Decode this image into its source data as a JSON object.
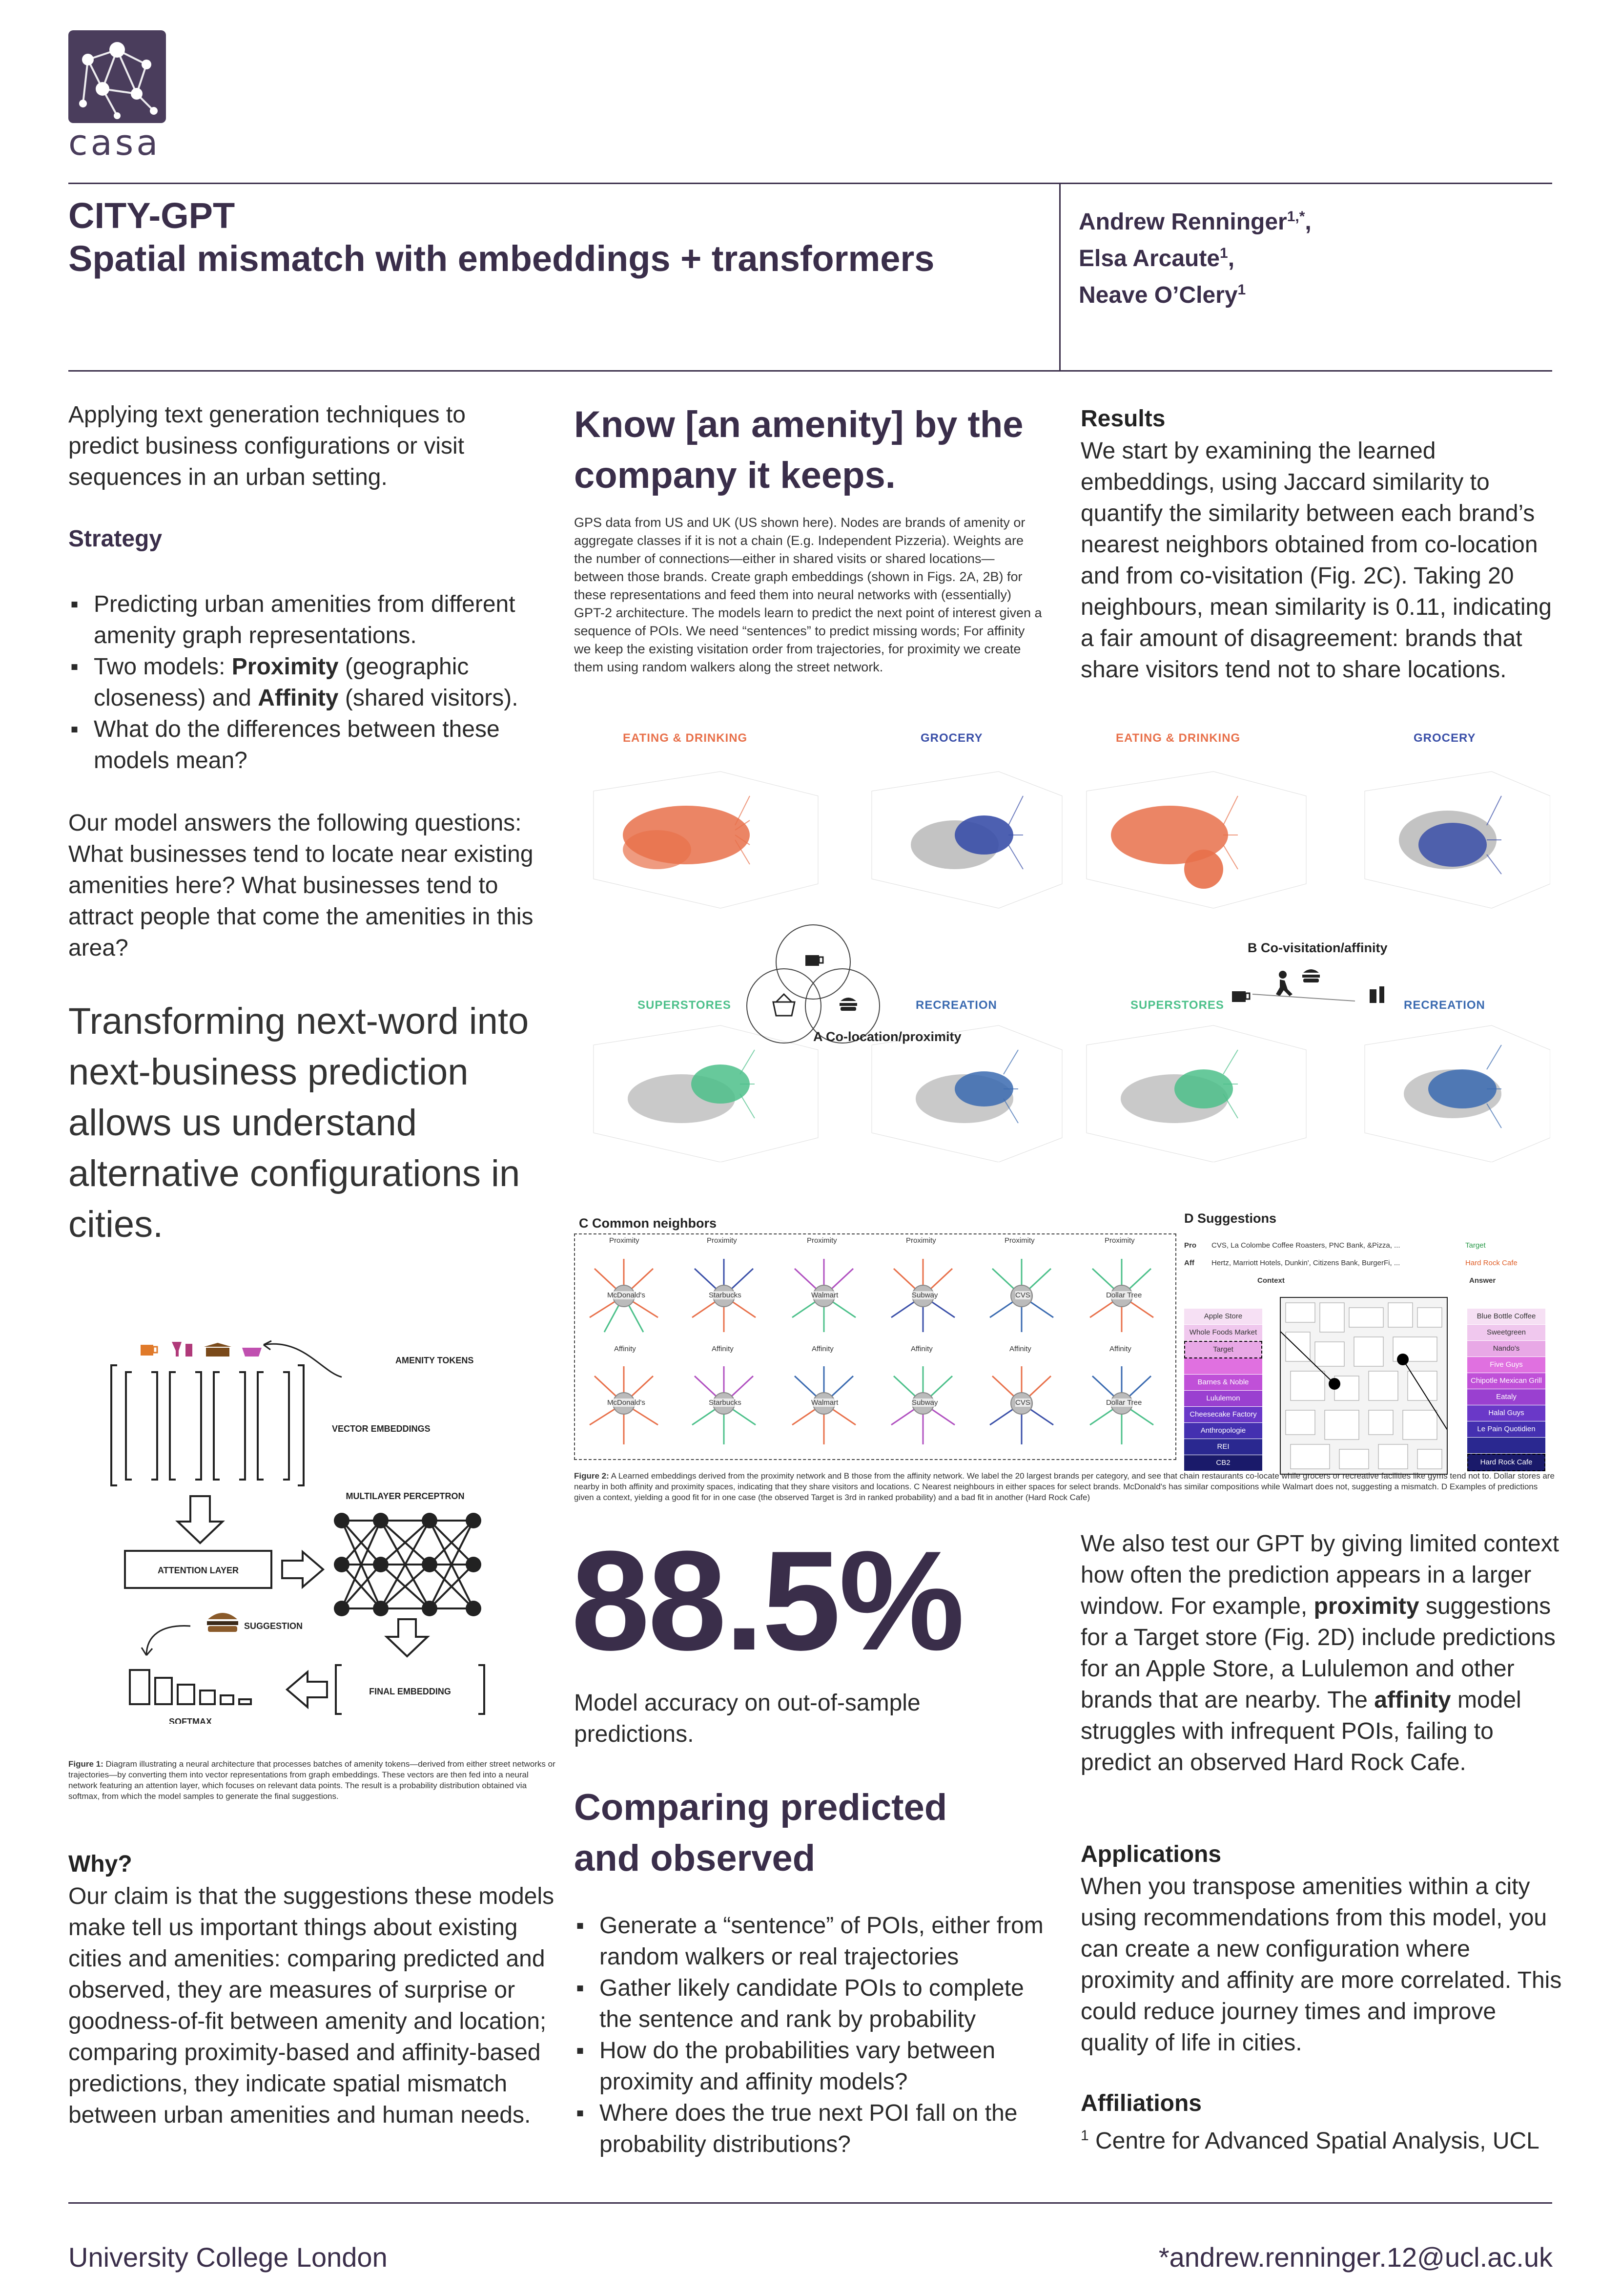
{
  "logo": {
    "text": "casa"
  },
  "title": {
    "line1": "CITY-GPT",
    "line2": "Spatial mismatch with embeddings + transformers"
  },
  "authors": [
    {
      "name": "Andrew Renninger",
      "sup": "1,*",
      "sep": ","
    },
    {
      "name": "Elsa Arcaute",
      "sup": "1",
      "sep": ","
    },
    {
      "name": "Neave O’Clery",
      "sup": "1",
      "sep": ""
    }
  ],
  "left": {
    "intro": "Applying text generation techniques to predict business configurations or visit sequences in an urban setting.",
    "strategy_heading": "Strategy",
    "strategy_items": [
      {
        "pre": "Predicting urban amenities from different amenity graph representations.",
        "b1": "",
        "mid": "",
        "b2": "",
        "post": ""
      },
      {
        "pre": "Two models: ",
        "b1": "Proximity",
        "mid": " (geographic closeness) and ",
        "b2": "Affinity",
        "post": " (shared visitors)."
      },
      {
        "pre": "What do the differences between these models mean?",
        "b1": "",
        "mid": "",
        "b2": "",
        "post": ""
      }
    ],
    "questions": "Our model answers the following questions: What businesses tend to locate near existing amenities here? What businesses tend to attract people that come the amenities in this area?",
    "big_statement": "Transforming next-word into next-business prediction allows us understand alternative configurations in cities.",
    "fig1_labels": {
      "amenity_tokens": "AMENITY TOKENS",
      "vector_embeddings": "VECTOR EMBEDDINGS",
      "mlp": "MULTILAYER PERCEPTRON",
      "attention": "ATTENTION LAYER",
      "suggestion": "SUGGESTION",
      "final_embedding": "FINAL EMBEDDING",
      "softmax": "SOFTMAX"
    },
    "fig1_caption_bold": "Figure 1:",
    "fig1_caption": " Diagram illustrating a neural architecture that processes batches of amenity tokens—derived from either street networks or trajectories—by converting them into vector representations from graph embeddings. These vectors are then fed into a neural network featuring an attention layer, which focuses on relevant data points. The result is a probability distribution obtained via softmax, from which the model samples to generate the final suggestions.",
    "why_heading": "Why?",
    "why_text": "Our claim is that the suggestions these models make tell us important things about existing cities and amenities: comparing predicted and observed, they are measures of surprise or goodness-of-fit between amenity and location; comparing proximity-based and affinity-based predictions, they indicate spatial mismatch between urban amenities and human needs."
  },
  "middle": {
    "heading": "Know [an amenity] by the company it keeps.",
    "gps_text": "GPS data from US and UK (US shown here). Nodes are brands of amenity or aggregate classes if it is not a chain (E.g. Independent Pizzeria). Weights are the number of connections—either in shared visits or shared locations—between those brands. Create graph embeddings (shown in Figs. 2A, 2B) for these representations and feed them into neural networks with (essentially) GPT-2 architecture. The models learn to predict the next point of interest given a sequence of POIs. We need “sentences” to predict missing words; For affinity we keep the existing visitation order from trajectories, for proximity we create them using random walkers along the street network.",
    "big_number": "88.5%",
    "accuracy_text": "Model accuracy on out-of-sample predictions.",
    "compare_heading": "Comparing predicted and observed",
    "compare_items": [
      "Generate a “sentence” of POIs, either from random walkers or real trajectories",
      "Gather likely candidate POIs to complete the sentence and rank by probability",
      "How do the probabilities vary between proximity and affinity models?",
      "Where does the true next POI fall on the probability distributions?"
    ]
  },
  "right": {
    "results_heading": "Results",
    "results_text": "We start by examining the learned embeddings, using Jaccard similarity to quantify the similarity between each brand’s nearest neighbors obtained from co-location and from co-visitation (Fig. 2C). Taking 20 neighbours, mean similarity is 0.11, indicating a fair amount of disagreement: brands that share visitors tend not to share locations.",
    "test_pre": "We also test our GPT by giving limited context how often the prediction appears in a larger window. For example, ",
    "test_b1": "proximity",
    "test_mid": " suggestions for a Target store (Fig. 2D) include predictions for an Apple Store, a Lululemon and other brands that are nearby. The ",
    "test_b2": "affinity",
    "test_post": " model struggles with infrequent POIs, failing to predict an observed Hard Rock Cafe.",
    "applications_heading": "Applications",
    "applications_text": "When you transpose amenities within a city using recommendations from this model, you can create a new configuration where proximity and affinity are more correlated. This could reduce journey times and improve quality of life in cities.",
    "affiliations_heading": "Affiliations",
    "affiliations_sup": "1",
    "affiliations_text": " Centre for Advanced Spatial Analysis, UCL"
  },
  "figure2": {
    "cat_labels": {
      "eating": "EATING & DRINKING",
      "grocery": "GROCERY",
      "superstores": "SUPERSTORES",
      "recreation": "RECREATION"
    },
    "panel_a": "A Co-location/proximity",
    "panel_b": "B Co-visitation/affinity",
    "panel_c": "C Common neighbors",
    "panel_d": "D Suggestions",
    "proximity_label": "Proximity",
    "affinity_label": "Affinity",
    "brands": [
      "McDonald's",
      "Starbucks",
      "Walmart",
      "Subway",
      "CVS",
      "Dollar Tree"
    ],
    "pro_label": "Pro",
    "aff_label": "Aff",
    "pro_context": "CVS, La Colombe Coffee Roasters, PNC Bank, &Pizza, ...",
    "aff_context": "Hertz, Marriott Hotels, Dunkin', Citizens Bank, BurgerFi, ...",
    "pro_answer": "Target",
    "aff_answer": "Hard Rock Cafe",
    "context_label": "Context",
    "answer_label": "Answer",
    "left_list": [
      "Apple Store",
      "Whole Foods Market",
      "Target",
      "",
      "Barnes & Noble",
      "Lululemon",
      "Cheesecake Factory",
      "Anthropologie",
      "REI",
      "CB2"
    ],
    "right_list": [
      "Blue Bottle Coffee",
      "Sweetgreen",
      "Nando's",
      "Five Guys",
      "Chipotle Mexican Grill",
      "Eataly",
      "Halal Guys",
      "Le Pain Quotidien",
      "",
      "Hard Rock Cafe"
    ],
    "caption_bold": "Figure 2:",
    "caption": " A Learned embeddings derived from the proximity network and B those from the affinity network. We label the 20 largest brands per category, and see that chain restaurants co-locate while grocers or recreative facilities like gyms tend not to. Dollar stores are nearby in both affinity and proximity spaces, indicating that they share visitors and locations. C Nearest neighbours in either spaces for select brands. McDonald's has similar compositions while Walmart does not, suggesting a mismatch. D Examples of predictions given a context, yielding a good fit for in one case (the observed Target is 3rd in ranked probability) and a bad fit in another (Hard Rock Cafe)",
    "colors": {
      "eating": "#e8704a",
      "grocery": "#3a4fa8",
      "superstores": "#4cc08a",
      "recreation": "#3a6ab0"
    }
  },
  "footer": {
    "left": "University College London",
    "right": "*andrew.renninger.12@ucl.ac.uk"
  }
}
